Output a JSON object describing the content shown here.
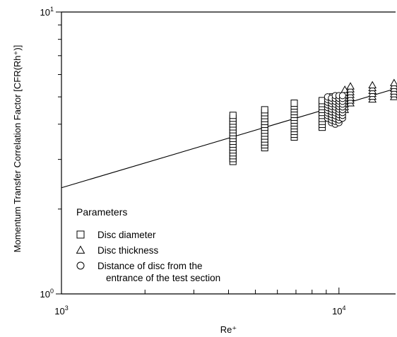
{
  "chart_data": {
    "type": "scatter",
    "title": "",
    "xlabel": "Re⁺",
    "ylabel": "Momentum Transfer Correlation Factor [CFR(Rh⁺)]",
    "xscale": "log",
    "yscale": "log",
    "xlim": [
      1000,
      16000
    ],
    "ylim": [
      1,
      10
    ],
    "x_tick_labels": [
      {
        "value": 1000,
        "base": "10",
        "exp": "3"
      },
      {
        "value": 10000,
        "base": "10",
        "exp": "4"
      }
    ],
    "y_tick_labels": [
      {
        "value": 1,
        "base": "10",
        "exp": "0"
      },
      {
        "value": 10,
        "base": "10",
        "exp": "1"
      }
    ],
    "legend": {
      "title": "Parameters",
      "position": "bottom-left",
      "entries": [
        {
          "marker": "square",
          "label": "Disc diameter"
        },
        {
          "marker": "triangle",
          "label": "Disc thickness"
        },
        {
          "marker": "circle",
          "label": "Distance of disc from the",
          "label2": "entrance of the test section"
        }
      ]
    },
    "fit_line": {
      "x": [
        1000,
        16000
      ],
      "y": [
        2.38,
        5.35
      ]
    },
    "series": [
      {
        "marker": "square",
        "groups": [
          {
            "x": 4150,
            "y_min": 2.95,
            "y_max": 4.3
          },
          {
            "x": 5400,
            "y_min": 3.3,
            "y_max": 4.5
          },
          {
            "x": 6900,
            "y_min": 3.6,
            "y_max": 4.75
          },
          {
            "x": 8700,
            "y_min": 3.9,
            "y_max": 4.85
          },
          {
            "x": 9500,
            "y_min": 4.2,
            "y_max": 5.0
          }
        ]
      },
      {
        "marker": "triangle",
        "groups": [
          {
            "x": 10500,
            "y_min": 4.5,
            "y_max": 5.3
          },
          {
            "x": 11000,
            "y_min": 4.75,
            "y_max": 5.45
          },
          {
            "x": 13200,
            "y_min": 4.9,
            "y_max": 5.5
          },
          {
            "x": 15800,
            "y_min": 5.0,
            "y_max": 5.6
          }
        ]
      },
      {
        "marker": "circle",
        "groups": [
          {
            "x": 9100,
            "y_min": 4.2,
            "y_max": 5.0
          },
          {
            "x": 9400,
            "y_min": 4.05,
            "y_max": 4.95
          },
          {
            "x": 9700,
            "y_min": 4.0,
            "y_max": 5.05
          },
          {
            "x": 10000,
            "y_min": 4.05,
            "y_max": 5.05
          },
          {
            "x": 10300,
            "y_min": 4.2,
            "y_max": 5.05
          }
        ]
      }
    ]
  }
}
